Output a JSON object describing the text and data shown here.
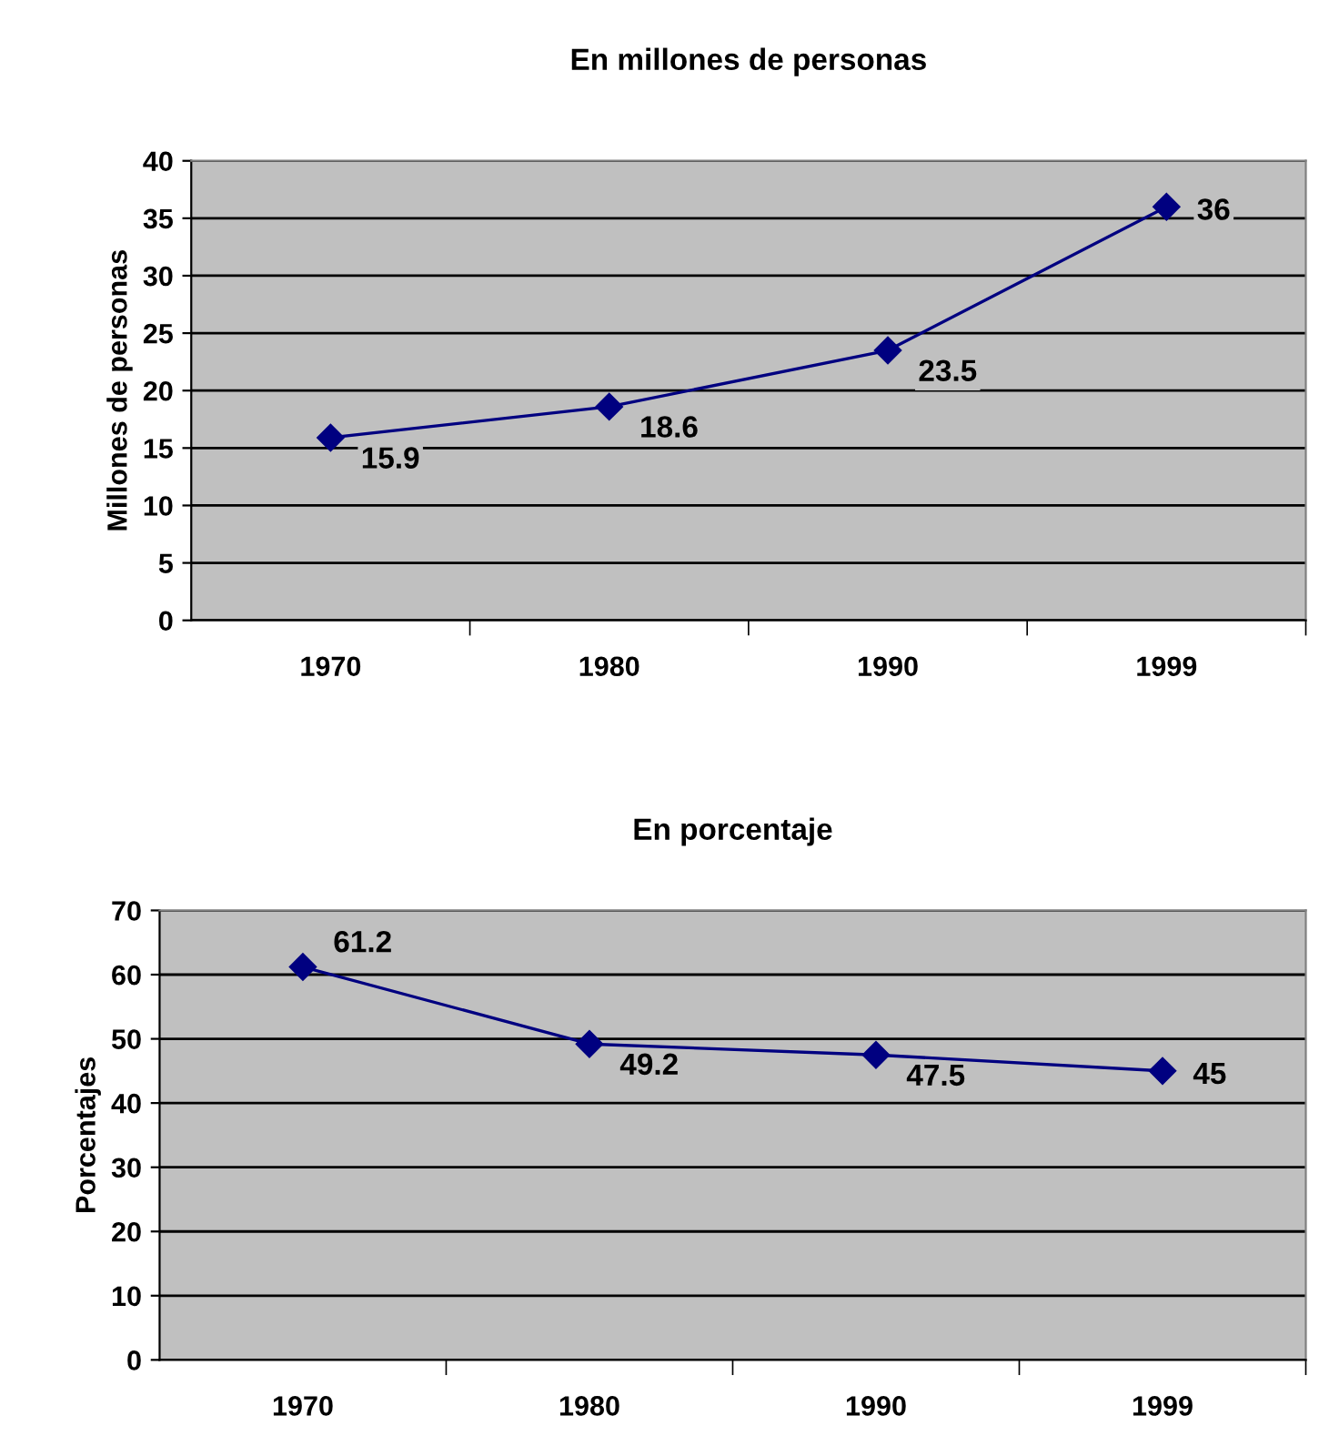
{
  "chart_data": [
    {
      "type": "line",
      "title": "En millones de personas",
      "ylabel": "Millones de personas",
      "categories": [
        "1970",
        "1980",
        "1990",
        "1999"
      ],
      "series": [
        {
          "color": "#000080",
          "values": [
            15.9,
            18.6,
            23.5,
            36
          ]
        }
      ],
      "ylim": [
        0,
        40
      ],
      "yticks": [
        0,
        5,
        10,
        15,
        20,
        25,
        30,
        35,
        40
      ],
      "grid": "y",
      "marker": "diamond",
      "line_style": "solid",
      "data_labels": true
    },
    {
      "type": "line",
      "title": "En porcentaje",
      "ylabel": "Porcentajes",
      "categories": [
        "1970",
        "1980",
        "1990",
        "1999"
      ],
      "series": [
        {
          "color": "#000080",
          "values": [
            61.2,
            49.2,
            47.5,
            45
          ]
        }
      ],
      "ylim": [
        0,
        70
      ],
      "yticks": [
        0,
        10,
        20,
        30,
        40,
        50,
        60,
        70
      ],
      "grid": "y",
      "marker": "diamond",
      "line_style": "solid",
      "data_labels": true
    }
  ]
}
